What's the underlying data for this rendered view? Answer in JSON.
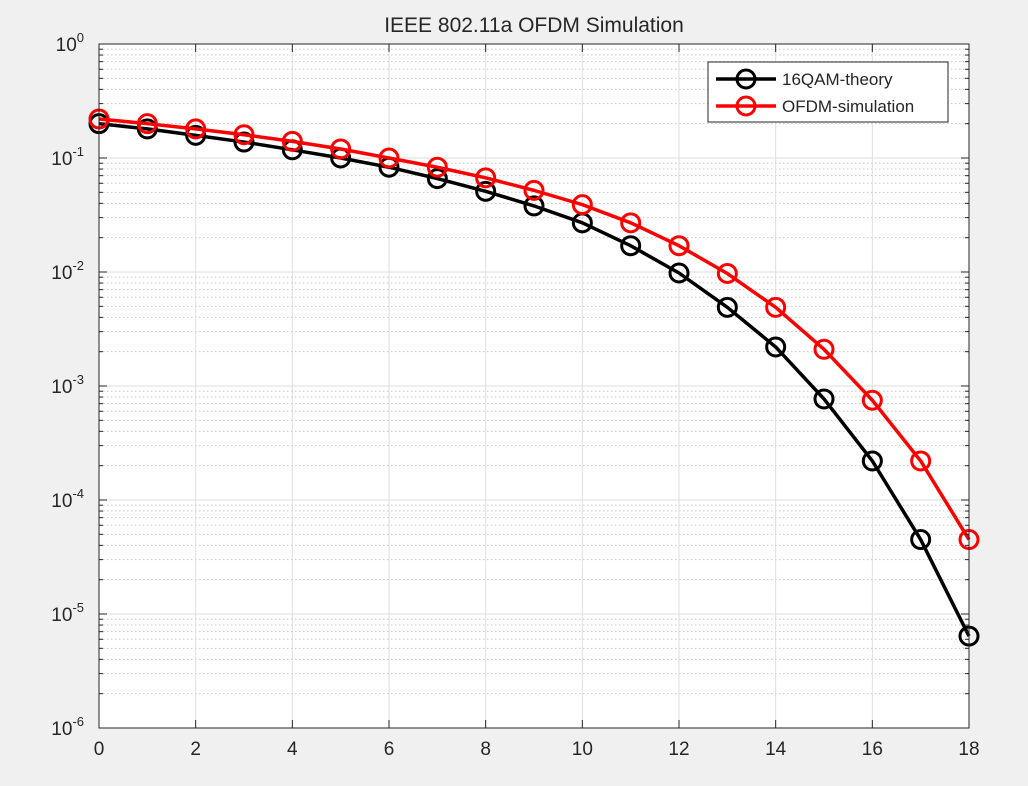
{
  "chart_data": {
    "type": "line",
    "title": "IEEE 802.11a OFDM Simulation",
    "xlabel": "",
    "ylabel": "",
    "xlim": [
      0,
      18
    ],
    "ylim": [
      1e-06,
      1
    ],
    "yscale": "log",
    "grid": true,
    "minor_grid": true,
    "legend_position": "top-right",
    "x_ticks": [
      "0",
      "2",
      "4",
      "6",
      "8",
      "10",
      "12",
      "14",
      "16",
      "18"
    ],
    "y_ticks": [
      {
        "base": "10",
        "exp": "-6"
      },
      {
        "base": "10",
        "exp": "-5"
      },
      {
        "base": "10",
        "exp": "-4"
      },
      {
        "base": "10",
        "exp": "-3"
      },
      {
        "base": "10",
        "exp": "-2"
      },
      {
        "base": "10",
        "exp": "-1"
      },
      {
        "base": "10",
        "exp": "0"
      }
    ],
    "x": [
      0,
      1,
      2,
      3,
      4,
      5,
      6,
      7,
      8,
      9,
      10,
      11,
      12,
      13,
      14,
      15,
      16,
      17,
      18
    ],
    "series": [
      {
        "name": "16QAM-theory",
        "color": "#000000",
        "marker": "circle",
        "values": [
          0.2,
          0.18,
          0.158,
          0.138,
          0.118,
          0.1,
          0.083,
          0.066,
          0.051,
          0.038,
          0.027,
          0.017,
          0.0098,
          0.0049,
          0.0022,
          0.00077,
          0.00022,
          4.5e-05,
          6.4e-06
        ]
      },
      {
        "name": "OFDM-simulation",
        "color": "#ff0000",
        "marker": "circle",
        "values": [
          0.22,
          0.2,
          0.18,
          0.16,
          0.14,
          0.12,
          0.1,
          0.083,
          0.067,
          0.052,
          0.039,
          0.027,
          0.017,
          0.0097,
          0.0049,
          0.0021,
          0.00075,
          0.00022,
          4.5e-05
        ]
      }
    ]
  }
}
